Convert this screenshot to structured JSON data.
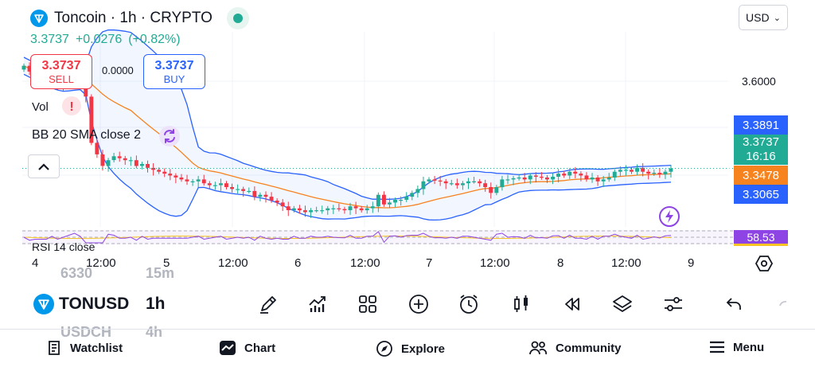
{
  "header": {
    "title": "Toncoin · 1h · CRYPTO",
    "price": "3.3737",
    "change": "+0.0276",
    "change_pct": "(+0.82%)",
    "currency": "USD"
  },
  "trade": {
    "sell_price": "3.3737",
    "sell_label": "SELL",
    "spread": "0.0000",
    "buy_price": "3.3737",
    "buy_label": "BUY"
  },
  "indicators": {
    "volume": "Vol",
    "bollinger": "BB 20 SMA close 2",
    "rsi": "RSI 14 close"
  },
  "price_axis": {
    "level": "3.6000",
    "bb_upper": "3.3891",
    "current": "3.3737",
    "countdown": "16:16",
    "bb_basis": "3.3478",
    "bb_lower": "3.3065",
    "rsi_value": "58.53"
  },
  "time_axis": [
    "4",
    "12:00",
    "5",
    "12:00",
    "6",
    "12:00",
    "7",
    "12:00",
    "8",
    "12:00",
    "9"
  ],
  "toolbar": {
    "symbol": "TONUSD",
    "interval": "1h",
    "ghost_above_symbol": "6330",
    "ghost_above_interval": "15m",
    "ghost_below_symbol": "USDCH",
    "ghost_below_interval": "4h",
    "tools": [
      "drawing-icon",
      "indicators-icon",
      "templates-icon",
      "add-icon",
      "alert-icon",
      "candle-style-icon",
      "replay-icon",
      "layers-icon",
      "settings-sliders-icon",
      "undo-icon"
    ]
  },
  "nav": {
    "watchlist": "Watchlist",
    "chart": "Chart",
    "explore": "Explore",
    "community": "Community",
    "menu": "Menu"
  },
  "colors": {
    "up": "#22ab94",
    "down": "#f23645",
    "bb_band": "#2962ff",
    "bb_basis": "#f7831e",
    "rsi": "#8e44e4"
  },
  "chart_data": {
    "type": "candlestick",
    "symbol": "TONUSD",
    "interval": "1h",
    "y_range": [
      3.2,
      3.7
    ],
    "last_price": 3.3737,
    "close": [
      3.64,
      3.625,
      3.615,
      3.605,
      3.595,
      3.6,
      3.59,
      3.59,
      3.6,
      3.62,
      3.625,
      3.56,
      3.44,
      3.41,
      3.38,
      3.395,
      3.405,
      3.4,
      3.395,
      3.395,
      3.38,
      3.385,
      3.375,
      3.37,
      3.365,
      3.36,
      3.355,
      3.35,
      3.345,
      3.34,
      3.34,
      3.345,
      3.335,
      3.33,
      3.33,
      3.335,
      3.325,
      3.32,
      3.32,
      3.315,
      3.315,
      3.3,
      3.305,
      3.3,
      3.29,
      3.285,
      3.275,
      3.265,
      3.27,
      3.265,
      3.26,
      3.265,
      3.265,
      3.265,
      3.27,
      3.27,
      3.268,
      3.265,
      3.275,
      3.27,
      3.265,
      3.27,
      3.275,
      3.305,
      3.28,
      3.285,
      3.292,
      3.292,
      3.3,
      3.31,
      3.32,
      3.34,
      3.345,
      3.342,
      3.34,
      3.335,
      3.335,
      3.33,
      3.335,
      3.34,
      3.34,
      3.335,
      3.325,
      3.31,
      3.325,
      3.345,
      3.345,
      3.348,
      3.35,
      3.345,
      3.355,
      3.352,
      3.35,
      3.345,
      3.352,
      3.36,
      3.355,
      3.365,
      3.36,
      3.355,
      3.345,
      3.35,
      3.34,
      3.345,
      3.35,
      3.365,
      3.37,
      3.37,
      3.365,
      3.375,
      3.365,
      3.36,
      3.362,
      3.358,
      3.365,
      3.3737
    ]
  }
}
